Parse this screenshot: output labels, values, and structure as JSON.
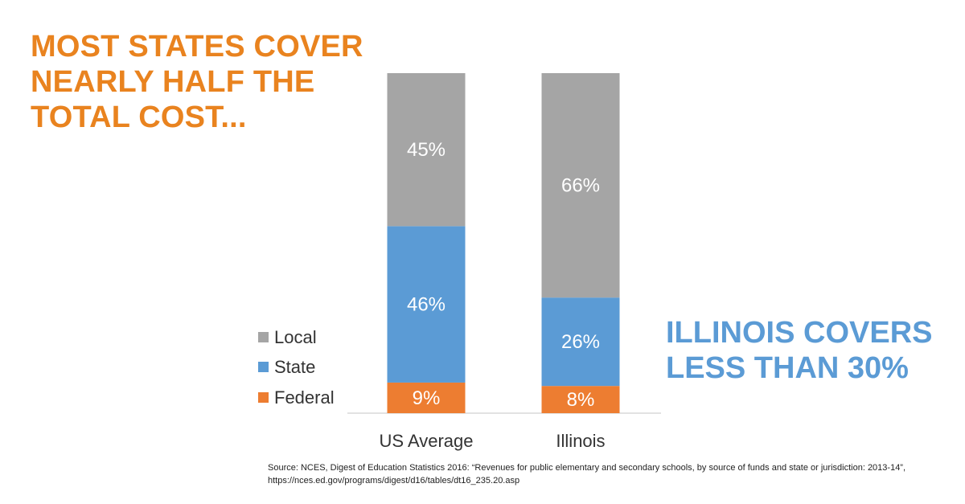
{
  "headline": "MOST STATES COVER\nNEARLY HALF THE\nTOTAL COST...",
  "callout": "ILLINOIS COVERS\nLESS THAN 30%",
  "source": "Source: NCES, Digest of Education Statistics 2016: “Revenues for public elementary and secondary schools, by source of funds and state or jurisdiction: 2013-14”, https://nces.ed.gov/programs/digest/d16/tables/dt16_235.20.asp",
  "colors": {
    "headline": "#E9831F",
    "callout": "#5B9BD5"
  },
  "chart_data": {
    "type": "bar",
    "stacked": true,
    "categories": [
      "US Average",
      "Illinois"
    ],
    "series": [
      {
        "name": "Federal",
        "color": "#ED7D31",
        "values": [
          9,
          8
        ],
        "labels": [
          "9%",
          "8%"
        ]
      },
      {
        "name": "State",
        "color": "#5B9BD5",
        "values": [
          46,
          26
        ],
        "labels": [
          "46%",
          "26%"
        ]
      },
      {
        "name": "Local",
        "color": "#A5A5A5",
        "values": [
          45,
          66
        ],
        "labels": [
          "45%",
          "66%"
        ]
      }
    ],
    "legend_order": [
      "Local",
      "State",
      "Federal"
    ],
    "legend_position": "left",
    "ylim": [
      0,
      100
    ],
    "grid": false
  }
}
